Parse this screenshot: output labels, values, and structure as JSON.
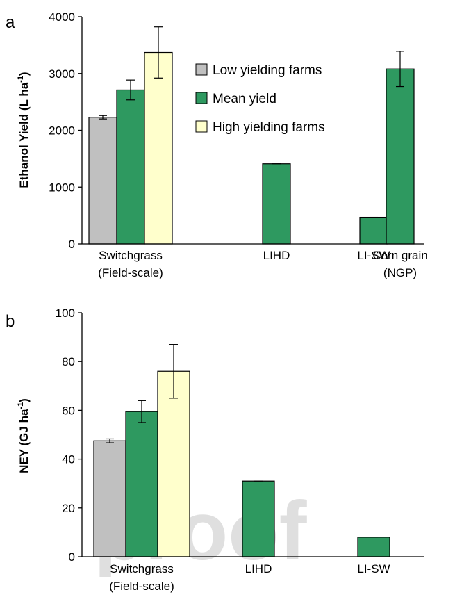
{
  "colors": {
    "low": "#c0c0c0",
    "mean": "#2e9960",
    "high": "#ffffcc",
    "axis": "#000000"
  },
  "watermark": "proof",
  "legend": {
    "items": [
      {
        "label": "Low yielding farms",
        "color": "#c0c0c0"
      },
      {
        "label": "Mean yield",
        "color": "#2e9960"
      },
      {
        "label": "High yielding farms",
        "color": "#ffffcc"
      }
    ]
  },
  "chart_data": [
    {
      "panel": "a",
      "type": "bar",
      "ylabel": "Ethanol Yield (L ha",
      "ylabel_sup": "-1",
      "ylabel_end": ")",
      "ylim": [
        0,
        4000
      ],
      "yticks": [
        "0",
        "1000",
        "2000",
        "3000",
        "4000"
      ],
      "ytick_values": [
        0,
        1000,
        2000,
        3000,
        4000
      ],
      "categories": [
        {
          "line1": "Switchgrass",
          "line2": "(Field-scale)"
        },
        {
          "line1": "LIHD",
          "line2": ""
        },
        {
          "line1": "LI-SW",
          "line2": ""
        },
        {
          "line1": "Corn grain",
          "line2": "(NGP)"
        }
      ],
      "bars": [
        {
          "category": 0,
          "series": "low",
          "value": 2230,
          "err": 30
        },
        {
          "category": 0,
          "series": "mean",
          "value": 2710,
          "err": 175
        },
        {
          "category": 0,
          "series": "high",
          "value": 3370,
          "err": 450
        },
        {
          "category": 1,
          "series": "mean",
          "value": 1410,
          "err": 0
        },
        {
          "category": 2,
          "series": "mean",
          "value": 470,
          "err": 0
        },
        {
          "category": 3,
          "series": "mean",
          "value": 3080,
          "err": 310
        }
      ]
    },
    {
      "panel": "b",
      "type": "bar",
      "ylabel": "NEY (GJ ha",
      "ylabel_sup": "-1",
      "ylabel_end": ")",
      "ylim": [
        0,
        100
      ],
      "yticks": [
        "0",
        "20",
        "40",
        "60",
        "80",
        "100"
      ],
      "ytick_values": [
        0,
        20,
        40,
        60,
        80,
        100
      ],
      "categories": [
        {
          "line1": "Switchgrass",
          "line2": "(Field-scale)"
        },
        {
          "line1": "LIHD",
          "line2": ""
        },
        {
          "line1": "LI-SW",
          "line2": ""
        }
      ],
      "bars": [
        {
          "category": 0,
          "series": "low",
          "value": 47.5,
          "err": 0.8
        },
        {
          "category": 0,
          "series": "mean",
          "value": 59.5,
          "err": 4.5
        },
        {
          "category": 0,
          "series": "high",
          "value": 76,
          "err": 11
        },
        {
          "category": 1,
          "series": "mean",
          "value": 31,
          "err": 0
        },
        {
          "category": 2,
          "series": "mean",
          "value": 8,
          "err": 0
        }
      ]
    }
  ]
}
